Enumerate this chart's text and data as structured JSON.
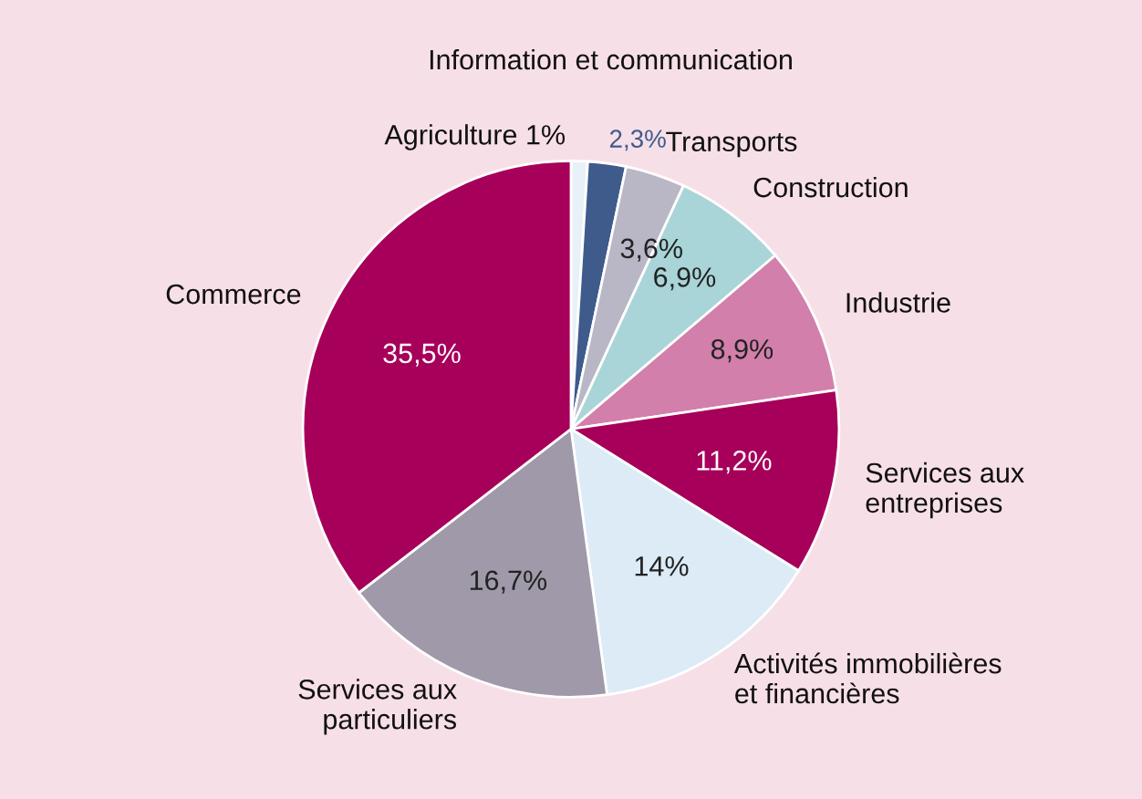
{
  "chart_data": {
    "type": "pie",
    "categories": [
      "Agriculture",
      "Information et communication",
      "Transports",
      "Construction",
      "Industrie",
      "Services aux\nentreprises",
      "Activités immobilières\net financières",
      "Services aux\nparticuliers",
      "Commerce"
    ],
    "values": [
      1,
      2.3,
      3.6,
      6.9,
      8.9,
      11.2,
      14,
      16.7,
      35.5
    ],
    "value_labels": [
      "1%",
      "2,3%",
      "3,6%",
      "6,9%",
      "8,9%",
      "11,2%",
      "14%",
      "16,7%",
      "35,5%"
    ],
    "colors": [
      "#e8f1f8",
      "#3e5b8c",
      "#b9b6c6",
      "#a9d5d8",
      "#d27fab",
      "#a6005a",
      "#dcebf6",
      "#9f99a9",
      "#a6005a"
    ],
    "legend": false
  }
}
